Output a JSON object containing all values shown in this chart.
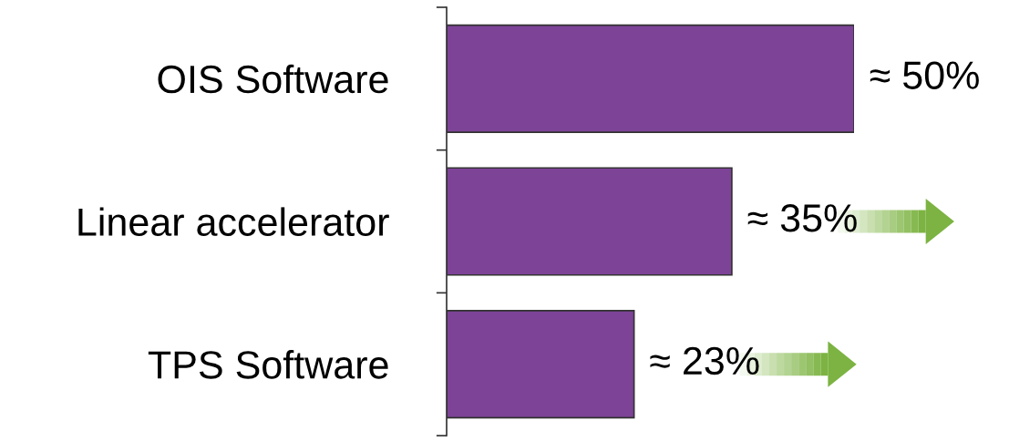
{
  "chart_data": {
    "type": "bar",
    "orientation": "horizontal",
    "categories": [
      "OIS Software",
      "Linear accelerator",
      "TPS Software"
    ],
    "values": [
      50,
      35,
      23
    ],
    "value_labels": [
      "≈ 50%",
      "≈ 35%",
      "≈ 23%"
    ],
    "color": "#7d4397",
    "xlim": [
      0,
      50
    ],
    "tick_labels": "y",
    "grid": false,
    "legend": false
  }
}
